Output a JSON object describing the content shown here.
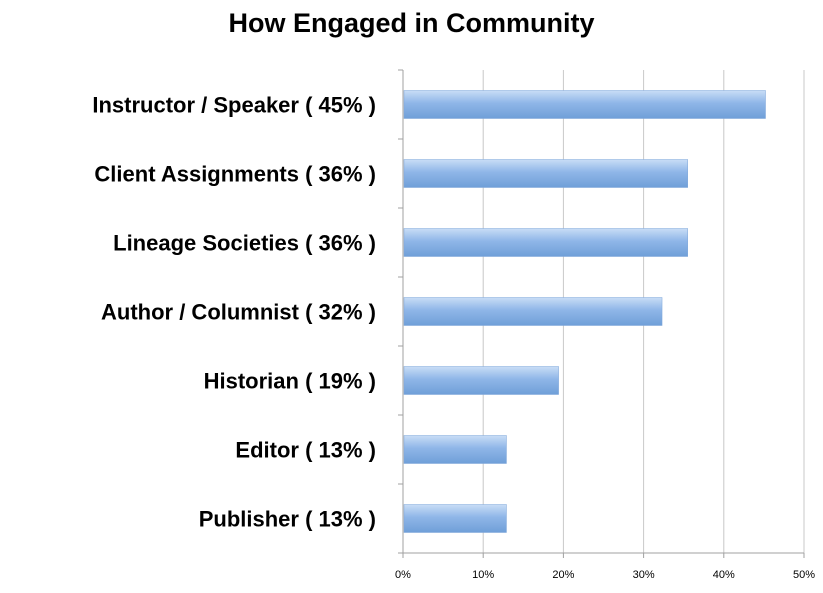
{
  "chart_data": {
    "type": "bar",
    "orientation": "horizontal",
    "title": "How Engaged in Community",
    "categories": [
      "Instructor / Speaker ( 45% )",
      "Client Assignments ( 36% )",
      "Lineage Societies ( 36% )",
      "Author / Columnist ( 32% )",
      "Historian ( 19% )",
      "Editor ( 13% )",
      "Publisher ( 13% )"
    ],
    "values": [
      45.2,
      35.5,
      35.5,
      32.3,
      19.4,
      12.9,
      12.9
    ],
    "xlim": [
      0,
      50
    ],
    "x_ticks": [
      "0%",
      "10%",
      "20%",
      "30%",
      "40%",
      "50%"
    ],
    "grid": "vertical",
    "legend": "none",
    "bar_color": "#8fb6e8",
    "bar_color_light": "#c9ddf6",
    "bar_color_dark": "#6f9fd8"
  }
}
